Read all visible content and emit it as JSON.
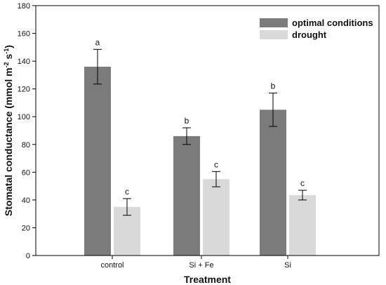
{
  "chart_data": {
    "type": "bar",
    "xlabel": "Treatment",
    "ylabel_main": "Stomatal conductance (mmol m",
    "ylabel_exp1": "-2",
    "ylabel_mid": " s",
    "ylabel_exp2": "-1",
    "ylabel_end": ")",
    "ylim": [
      0,
      180
    ],
    "yticks": [
      0,
      20,
      40,
      60,
      80,
      100,
      120,
      140,
      160,
      180
    ],
    "categories": [
      "control",
      "Si + Fe",
      "Si"
    ],
    "series": [
      {
        "name": "optimal conditions",
        "color": "#7b7b7b",
        "values": [
          136,
          86,
          105
        ],
        "errors": [
          12.5,
          6,
          12
        ],
        "labels": [
          "a",
          "b",
          "b"
        ]
      },
      {
        "name": "drought",
        "color": "#d9d9d9",
        "values": [
          35,
          55,
          43.5
        ],
        "errors": [
          6,
          5.5,
          3.5
        ],
        "labels": [
          "c",
          "c",
          "c"
        ]
      }
    ],
    "legend_position": "top-right",
    "grid": false
  }
}
